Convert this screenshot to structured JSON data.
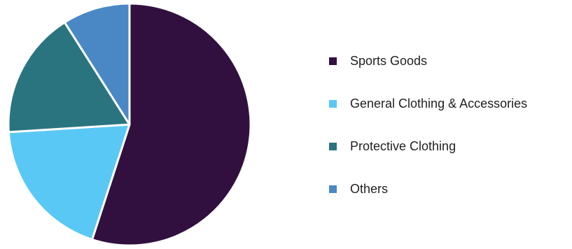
{
  "chart_data": {
    "type": "pie",
    "title": "",
    "start_angle_deg": 0,
    "direction": "clockwise",
    "slices": [
      {
        "label": "Sports Goods",
        "value": 55,
        "color": "#31103f"
      },
      {
        "label": "General Clothing & Accessories",
        "value": 19,
        "color": "#5ac8f5"
      },
      {
        "label": "Protective Clothing",
        "value": 17,
        "color": "#2a7480"
      },
      {
        "label": "Others",
        "value": 9,
        "color": "#4a88c5"
      }
    ],
    "legend_position": "right"
  }
}
